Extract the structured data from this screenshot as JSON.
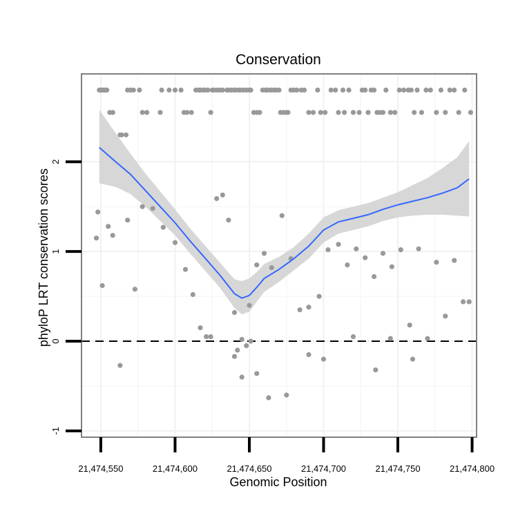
{
  "chart_data": {
    "type": "scatter",
    "title": "Conservation",
    "xlabel": "Genomic Position",
    "ylabel": "phyloP LRT conservation scores",
    "xlim": [
      21474537,
      21474803
    ],
    "ylim": [
      -1.07,
      2.98
    ],
    "x_ticks": [
      21474550,
      21474600,
      21474650,
      21474700,
      21474750,
      21474800
    ],
    "x_tick_labels": [
      "21,474,550",
      "21,474,600",
      "21,474,650",
      "21,474,700",
      "21,474,750",
      "21,474,800"
    ],
    "y_ticks": [
      -1,
      0,
      1,
      2
    ],
    "y_tick_labels": [
      "-1",
      "0",
      "1",
      "2"
    ],
    "reference_line": {
      "y": 0,
      "style": "dashed"
    },
    "grid": true,
    "colors": {
      "points": "#999999",
      "smooth": "#3366FF",
      "band": "#D3D3D3",
      "panel_border": "#7F7F7F"
    },
    "series": [
      {
        "name": "scores",
        "kind": "points",
        "x": [
          21474549,
          21474550,
          21474551,
          21474552,
          21474553,
          21474554,
          21474556,
          21474558,
          21474558,
          21474563,
          21474564,
          21474567,
          21474568,
          21474570,
          21474572,
          21474576,
          21474578,
          21474581,
          21474590,
          21474591,
          21474596,
          21474600,
          21474604,
          21474606,
          21474608,
          21474611,
          21474614,
          21474616,
          21474617,
          21474617,
          21474619,
          21474620,
          21474622,
          21474624,
          21474625,
          21474626,
          21474628,
          21474630,
          21474632,
          21474635,
          21474636,
          21474638,
          21474640,
          21474641,
          21474643,
          21474644,
          21474646,
          21474648,
          21474650,
          21474651,
          21474653,
          21474655,
          21474657,
          21474659,
          21474661,
          21474662,
          21474664,
          21474665,
          21474667,
          21474668,
          21474670,
          21474671,
          21474673,
          21474675,
          21474676,
          21474678,
          21474680,
          21474682,
          21474685,
          21474687,
          21474690,
          21474693,
          21474696,
          21474698,
          21474701,
          21474705,
          21474708,
          21474710,
          21474713,
          21474714,
          21474717,
          21474720,
          21474724,
          21474726,
          21474728,
          21474730,
          21474732,
          21474734,
          21474736,
          21474738,
          21474740,
          21474742,
          21474745,
          21474748,
          21474751,
          21474754,
          21474757,
          21474759,
          21474761,
          21474763,
          21474766,
          21474769,
          21474772,
          21474776,
          21474779,
          21474782,
          21474785,
          21474788,
          21474791,
          21474795,
          21474799,
          21474547,
          21474548,
          21474551,
          21474555,
          21474558,
          21474563,
          21474568,
          21474573,
          21474578,
          21474585,
          21474592,
          21474600,
          21474607,
          21474612,
          21474617,
          21474621,
          21474624,
          21474628,
          21474632,
          21474636,
          21474640,
          21474645,
          21474650,
          21474655,
          21474660,
          21474665,
          21474672,
          21474678,
          21474684,
          21474690,
          21474697,
          21474703,
          21474710,
          21474716,
          21474722,
          21474728,
          21474734,
          21474740,
          21474746,
          21474752,
          21474758,
          21474764,
          21474770,
          21474776,
          21474782,
          21474788,
          21474794,
          21474798,
          21474640,
          21474642,
          21474645,
          21474648,
          21474651,
          21474655,
          21474663,
          21474675,
          21474690,
          21474700,
          21474720,
          21474735,
          21474745,
          21474760
        ],
        "y": [
          2.8,
          2.8,
          2.8,
          2.8,
          2.8,
          2.8,
          2.55,
          2.55,
          2.55,
          2.3,
          2.3,
          2.3,
          2.8,
          2.8,
          2.8,
          2.8,
          2.55,
          2.55,
          2.55,
          2.8,
          2.8,
          2.8,
          2.8,
          2.55,
          2.55,
          2.55,
          2.8,
          2.8,
          2.8,
          2.8,
          2.8,
          2.8,
          2.8,
          2.55,
          2.8,
          2.8,
          2.8,
          2.8,
          2.8,
          2.8,
          2.8,
          2.8,
          2.8,
          2.8,
          2.8,
          2.8,
          2.8,
          2.8,
          2.8,
          2.8,
          2.55,
          2.55,
          2.55,
          2.8,
          2.8,
          2.8,
          2.8,
          2.8,
          2.8,
          2.8,
          2.8,
          2.55,
          2.55,
          2.55,
          2.55,
          2.8,
          2.8,
          2.8,
          2.8,
          2.8,
          2.55,
          2.55,
          2.8,
          2.55,
          2.55,
          2.8,
          2.8,
          2.55,
          2.8,
          2.55,
          2.8,
          2.55,
          2.55,
          2.8,
          2.8,
          2.55,
          2.8,
          2.8,
          2.55,
          2.55,
          2.55,
          2.8,
          2.55,
          2.55,
          2.8,
          2.8,
          2.8,
          2.8,
          2.55,
          2.8,
          2.55,
          2.8,
          2.8,
          2.55,
          2.8,
          2.55,
          2.8,
          2.8,
          2.55,
          2.8,
          2.55,
          1.15,
          1.44,
          0.62,
          1.28,
          1.18,
          -0.27,
          1.35,
          0.58,
          1.5,
          1.48,
          1.27,
          1.1,
          0.8,
          0.52,
          0.15,
          0.05,
          0.05,
          1.59,
          1.63,
          1.35,
          0.32,
          0.02,
          0.4,
          0.85,
          0.98,
          0.82,
          1.4,
          0.92,
          0.35,
          0.38,
          0.5,
          1.02,
          1.08,
          0.85,
          1.03,
          0.93,
          0.72,
          0.98,
          0.83,
          1.02,
          0.18,
          1.03,
          0.03,
          0.88,
          0.28,
          0.9,
          0.44,
          0.44,
          -0.17,
          -0.1,
          -0.4,
          -0.05,
          0.0,
          -0.36,
          -0.63,
          -0.6,
          -0.15,
          -0.2,
          0.05,
          -0.32,
          0.03,
          -0.2
        ],
        "color": "#999999"
      },
      {
        "name": "loess fit",
        "kind": "smooth",
        "x": [
          21474549,
          21474560,
          21474570,
          21474580,
          21474590,
          21474600,
          21474610,
          21474620,
          21474630,
          21474640,
          21474645,
          21474650,
          21474655,
          21474660,
          21474670,
          21474680,
          21474690,
          21474700,
          21474710,
          21474720,
          21474730,
          21474740,
          21474750,
          21474760,
          21474770,
          21474780,
          21474790,
          21474798
        ],
        "y": [
          2.16,
          2.0,
          1.86,
          1.68,
          1.5,
          1.32,
          1.12,
          0.93,
          0.74,
          0.53,
          0.48,
          0.51,
          0.6,
          0.7,
          0.8,
          0.92,
          1.06,
          1.24,
          1.33,
          1.37,
          1.41,
          1.47,
          1.52,
          1.56,
          1.6,
          1.65,
          1.71,
          1.81
        ],
        "lower": [
          1.76,
          1.72,
          1.64,
          1.5,
          1.34,
          1.18,
          0.98,
          0.79,
          0.6,
          0.37,
          0.3,
          0.33,
          0.44,
          0.55,
          0.66,
          0.79,
          0.92,
          1.1,
          1.2,
          1.24,
          1.28,
          1.34,
          1.38,
          1.4,
          1.41,
          1.41,
          1.4,
          1.39
        ],
        "upper": [
          2.58,
          2.32,
          2.09,
          1.87,
          1.67,
          1.47,
          1.26,
          1.07,
          0.88,
          0.69,
          0.67,
          0.7,
          0.77,
          0.86,
          0.94,
          1.05,
          1.2,
          1.38,
          1.46,
          1.5,
          1.54,
          1.6,
          1.66,
          1.74,
          1.82,
          1.93,
          2.05,
          2.23
        ],
        "color": "#3366FF"
      }
    ]
  }
}
